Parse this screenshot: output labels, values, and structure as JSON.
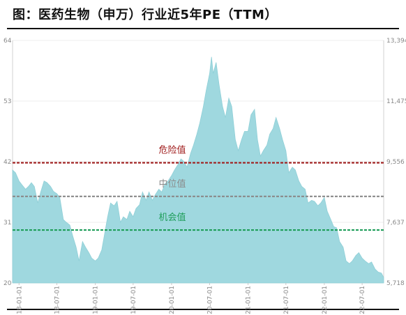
{
  "title": "图：医药生物（申万）行业近5年PE（TTM）",
  "chart_data": {
    "type": "area",
    "title": "图：医药生物（申万）行业近5年PE（TTM）",
    "xlabel": "",
    "ylabel": "",
    "x_ticks": [
      "18-01-01",
      "18-07-01",
      "19-01-01",
      "19-07-01",
      "20-01-01",
      "20-07-01",
      "21-01-01",
      "21-07-01",
      "22-01-01",
      "22-07-01"
    ],
    "y_left": {
      "min": 20,
      "max": 64,
      "ticks": [
        "20",
        "31",
        "42",
        "53",
        "64"
      ]
    },
    "y_right": {
      "min": 5718,
      "max": 13394,
      "ticks": [
        "5,718",
        "7,637",
        "9,556",
        "11,475",
        "13,394"
      ]
    },
    "area_color": "#9fd8df",
    "grid": true,
    "series": [
      {
        "values": [
          {
            "x": "2017-12-01",
            "y": 40.5
          },
          {
            "x": "2017-12-15",
            "y": 40
          },
          {
            "x": "2018-01-01",
            "y": 38.5
          },
          {
            "x": "2018-01-15",
            "y": 37.8
          },
          {
            "x": "2018-02-01",
            "y": 37
          },
          {
            "x": "2018-02-15",
            "y": 37.5
          },
          {
            "x": "2018-03-01",
            "y": 38.2
          },
          {
            "x": "2018-03-15",
            "y": 37.5
          },
          {
            "x": "2018-04-01",
            "y": 34.5
          },
          {
            "x": "2018-04-15",
            "y": 36.5
          },
          {
            "x": "2018-05-01",
            "y": 38.5
          },
          {
            "x": "2018-05-15",
            "y": 38.2
          },
          {
            "x": "2018-06-01",
            "y": 37.5
          },
          {
            "x": "2018-06-15",
            "y": 36.6
          },
          {
            "x": "2018-07-01",
            "y": 36.2
          },
          {
            "x": "2018-07-15",
            "y": 35.5
          },
          {
            "x": "2018-08-01",
            "y": 31.5
          },
          {
            "x": "2018-08-15",
            "y": 31
          },
          {
            "x": "2018-09-01",
            "y": 30.5
          },
          {
            "x": "2018-09-15",
            "y": 28.5
          },
          {
            "x": "2018-10-01",
            "y": 26.5
          },
          {
            "x": "2018-10-15",
            "y": 24
          },
          {
            "x": "2018-11-01",
            "y": 27.5
          },
          {
            "x": "2018-11-15",
            "y": 26.5
          },
          {
            "x": "2018-12-01",
            "y": 25.5
          },
          {
            "x": "2018-12-15",
            "y": 24.5
          },
          {
            "x": "2019-01-01",
            "y": 24
          },
          {
            "x": "2019-01-15",
            "y": 24.5
          },
          {
            "x": "2019-02-01",
            "y": 26
          },
          {
            "x": "2019-02-15",
            "y": 29
          },
          {
            "x": "2019-03-01",
            "y": 32
          },
          {
            "x": "2019-03-15",
            "y": 34.5
          },
          {
            "x": "2019-04-01",
            "y": 34
          },
          {
            "x": "2019-04-15",
            "y": 34.8
          },
          {
            "x": "2019-05-01",
            "y": 31
          },
          {
            "x": "2019-05-15",
            "y": 32
          },
          {
            "x": "2019-06-01",
            "y": 31.5
          },
          {
            "x": "2019-06-15",
            "y": 33
          },
          {
            "x": "2019-07-01",
            "y": 32
          },
          {
            "x": "2019-07-15",
            "y": 33.5
          },
          {
            "x": "2019-08-01",
            "y": 34.2
          },
          {
            "x": "2019-08-15",
            "y": 36.5
          },
          {
            "x": "2019-09-01",
            "y": 35
          },
          {
            "x": "2019-09-15",
            "y": 36.5
          },
          {
            "x": "2019-10-01",
            "y": 35
          },
          {
            "x": "2019-10-15",
            "y": 36
          },
          {
            "x": "2019-11-01",
            "y": 37
          },
          {
            "x": "2019-11-15",
            "y": 36.5
          },
          {
            "x": "2019-12-01",
            "y": 38
          },
          {
            "x": "2019-12-15",
            "y": 38.5
          },
          {
            "x": "2020-01-01",
            "y": 39.5
          },
          {
            "x": "2020-01-15",
            "y": 40.5
          },
          {
            "x": "2020-02-01",
            "y": 41.5
          },
          {
            "x": "2020-02-15",
            "y": 42.5
          },
          {
            "x": "2020-03-01",
            "y": 42
          },
          {
            "x": "2020-03-15",
            "y": 41
          },
          {
            "x": "2020-04-01",
            "y": 43.5
          },
          {
            "x": "2020-04-15",
            "y": 45
          },
          {
            "x": "2020-05-01",
            "y": 47
          },
          {
            "x": "2020-05-15",
            "y": 49
          },
          {
            "x": "2020-06-01",
            "y": 52
          },
          {
            "x": "2020-06-15",
            "y": 55
          },
          {
            "x": "2020-07-01",
            "y": 58
          },
          {
            "x": "2020-07-10",
            "y": 61
          },
          {
            "x": "2020-07-18",
            "y": 58
          },
          {
            "x": "2020-08-01",
            "y": 60
          },
          {
            "x": "2020-08-15",
            "y": 56
          },
          {
            "x": "2020-09-01",
            "y": 52
          },
          {
            "x": "2020-09-15",
            "y": 50
          },
          {
            "x": "2020-10-01",
            "y": 53.5
          },
          {
            "x": "2020-10-15",
            "y": 52
          },
          {
            "x": "2020-11-01",
            "y": 46
          },
          {
            "x": "2020-11-15",
            "y": 44
          },
          {
            "x": "2020-12-01",
            "y": 46
          },
          {
            "x": "2020-12-15",
            "y": 47.5
          },
          {
            "x": "2021-01-01",
            "y": 47.5
          },
          {
            "x": "2021-01-15",
            "y": 50.5
          },
          {
            "x": "2021-02-01",
            "y": 51.5
          },
          {
            "x": "2021-02-15",
            "y": 46
          },
          {
            "x": "2021-03-01",
            "y": 43
          },
          {
            "x": "2021-03-15",
            "y": 44
          },
          {
            "x": "2021-04-01",
            "y": 45
          },
          {
            "x": "2021-04-15",
            "y": 47
          },
          {
            "x": "2021-05-01",
            "y": 48
          },
          {
            "x": "2021-05-15",
            "y": 50
          },
          {
            "x": "2021-06-01",
            "y": 48
          },
          {
            "x": "2021-06-15",
            "y": 46
          },
          {
            "x": "2021-07-01",
            "y": 44
          },
          {
            "x": "2021-07-15",
            "y": 40
          },
          {
            "x": "2021-08-01",
            "y": 41
          },
          {
            "x": "2021-08-15",
            "y": 40.5
          },
          {
            "x": "2021-09-01",
            "y": 38.5
          },
          {
            "x": "2021-09-15",
            "y": 37.5
          },
          {
            "x": "2021-10-01",
            "y": 37
          },
          {
            "x": "2021-10-15",
            "y": 34.5
          },
          {
            "x": "2021-11-01",
            "y": 35
          },
          {
            "x": "2021-11-15",
            "y": 34.8
          },
          {
            "x": "2021-12-01",
            "y": 34
          },
          {
            "x": "2021-12-15",
            "y": 34.5
          },
          {
            "x": "2022-01-01",
            "y": 35.5
          },
          {
            "x": "2022-01-15",
            "y": 33
          },
          {
            "x": "2022-02-01",
            "y": 31.5
          },
          {
            "x": "2022-02-15",
            "y": 30.2
          },
          {
            "x": "2022-03-01",
            "y": 30
          },
          {
            "x": "2022-03-15",
            "y": 27.5
          },
          {
            "x": "2022-04-01",
            "y": 26.5
          },
          {
            "x": "2022-04-15",
            "y": 24
          },
          {
            "x": "2022-05-01",
            "y": 23.5
          },
          {
            "x": "2022-05-15",
            "y": 24
          },
          {
            "x": "2022-06-01",
            "y": 25
          },
          {
            "x": "2022-06-15",
            "y": 25.5
          },
          {
            "x": "2022-07-01",
            "y": 24.5
          },
          {
            "x": "2022-07-15",
            "y": 24
          },
          {
            "x": "2022-08-01",
            "y": 23.5
          },
          {
            "x": "2022-08-15",
            "y": 23.8
          },
          {
            "x": "2022-09-01",
            "y": 22.5
          },
          {
            "x": "2022-09-15",
            "y": 22
          },
          {
            "x": "2022-10-01",
            "y": 21.8
          },
          {
            "x": "2022-10-12",
            "y": 21
          }
        ]
      }
    ],
    "reference_lines": [
      {
        "label": "危险值",
        "value": 41.8,
        "color": "#a01c1c",
        "style": "dashed"
      },
      {
        "label": "中位值",
        "value": 35.7,
        "color": "#8a8a8a",
        "style": "dashed"
      },
      {
        "label": "机会值",
        "value": 29.6,
        "color": "#1f9e5a",
        "style": "dashed"
      }
    ]
  }
}
